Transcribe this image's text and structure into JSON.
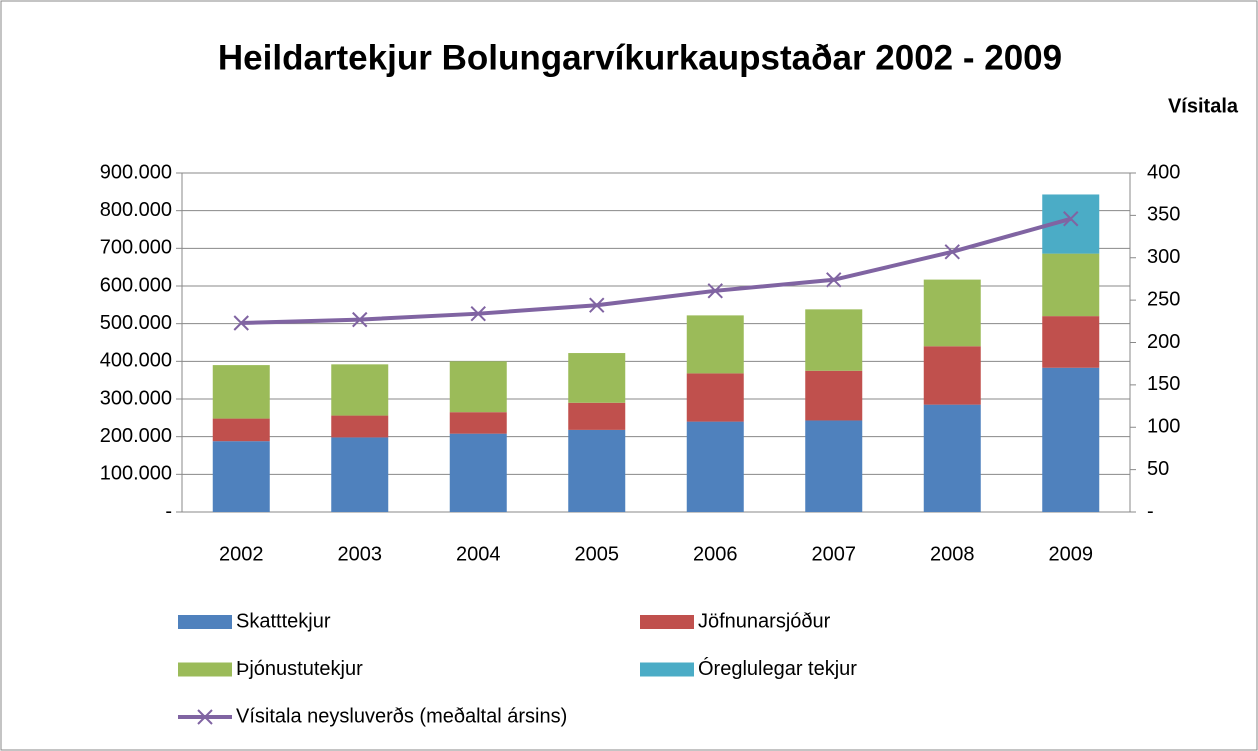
{
  "chart_data": {
    "type": "bar",
    "stacked": true,
    "title": "Heildartekjur Bolungarvíkurkaupstaðar 2002 - 2009",
    "y2_label": "Vísitala",
    "categories": [
      "2002",
      "2003",
      "2004",
      "2005",
      "2006",
      "2007",
      "2008",
      "2009"
    ],
    "series": [
      {
        "name": "Skatttekjur",
        "color": "#4f81bd",
        "values": [
          188000,
          198000,
          208000,
          218000,
          240000,
          243000,
          285000,
          383000
        ]
      },
      {
        "name": "Jöfnunarsjóður",
        "color": "#c0504d",
        "values": [
          60000,
          58000,
          57000,
          72000,
          128000,
          132000,
          155000,
          137000
        ]
      },
      {
        "name": "Þjónustutekjur",
        "color": "#9bbb59",
        "values": [
          142000,
          136000,
          135000,
          132000,
          154000,
          163000,
          177000,
          166000
        ]
      },
      {
        "name": "Óreglulegar tekjur",
        "color": "#4bacc6",
        "values": [
          0,
          0,
          0,
          0,
          0,
          0,
          0,
          157000
        ]
      },
      {
        "name": "Vísitala neysluverðs (meðaltal ársins)",
        "color": "#8064a2",
        "type": "line",
        "axis": "y2",
        "values": [
          223,
          227,
          234,
          244,
          261,
          274,
          307,
          346
        ]
      }
    ],
    "ylim": [
      0,
      900000
    ],
    "yticks": [
      {
        "value": 0,
        "label": "-"
      },
      {
        "value": 100000,
        "label": "100.000"
      },
      {
        "value": 200000,
        "label": "200.000"
      },
      {
        "value": 300000,
        "label": "300.000"
      },
      {
        "value": 400000,
        "label": "400.000"
      },
      {
        "value": 500000,
        "label": "500.000"
      },
      {
        "value": 600000,
        "label": "600.000"
      },
      {
        "value": 700000,
        "label": "700.000"
      },
      {
        "value": 800000,
        "label": "800.000"
      },
      {
        "value": 900000,
        "label": "900.000"
      }
    ],
    "y2lim": [
      0,
      400
    ],
    "y2ticks": [
      {
        "value": 0,
        "label": "-"
      },
      50,
      100,
      150,
      200,
      250,
      300,
      350,
      400
    ],
    "grid": true,
    "legend": "bottom"
  }
}
